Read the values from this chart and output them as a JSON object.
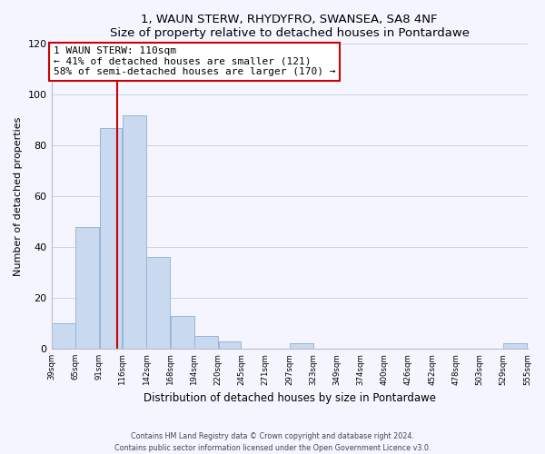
{
  "title": "1, WAUN STERW, RHYDYFRO, SWANSEA, SA8 4NF",
  "subtitle": "Size of property relative to detached houses in Pontardawe",
  "xlabel": "Distribution of detached houses by size in Pontardawe",
  "ylabel": "Number of detached properties",
  "bar_color": "#c9d9f0",
  "bar_edge_color": "#9ab5d9",
  "vline_x": 110,
  "vline_color": "#cc0000",
  "annotation_title": "1 WAUN STERW: 110sqm",
  "annotation_line1": "← 41% of detached houses are smaller (121)",
  "annotation_line2": "58% of semi-detached houses are larger (170) →",
  "bin_edges": [
    39,
    65,
    91,
    116,
    142,
    168,
    194,
    220,
    245,
    271,
    297,
    323,
    349,
    374,
    400,
    426,
    452,
    478,
    503,
    529,
    555
  ],
  "bar_heights": [
    10,
    48,
    87,
    92,
    36,
    13,
    5,
    3,
    0,
    0,
    2,
    0,
    0,
    0,
    0,
    0,
    0,
    0,
    0,
    2
  ],
  "ylim": [
    0,
    120
  ],
  "yticks": [
    0,
    20,
    40,
    60,
    80,
    100,
    120
  ],
  "footer_line1": "Contains HM Land Registry data © Crown copyright and database right 2024.",
  "footer_line2": "Contains public sector information licensed under the Open Government Licence v3.0.",
  "bg_color": "#f5f5ff",
  "grid_color": "#c8d4e8"
}
